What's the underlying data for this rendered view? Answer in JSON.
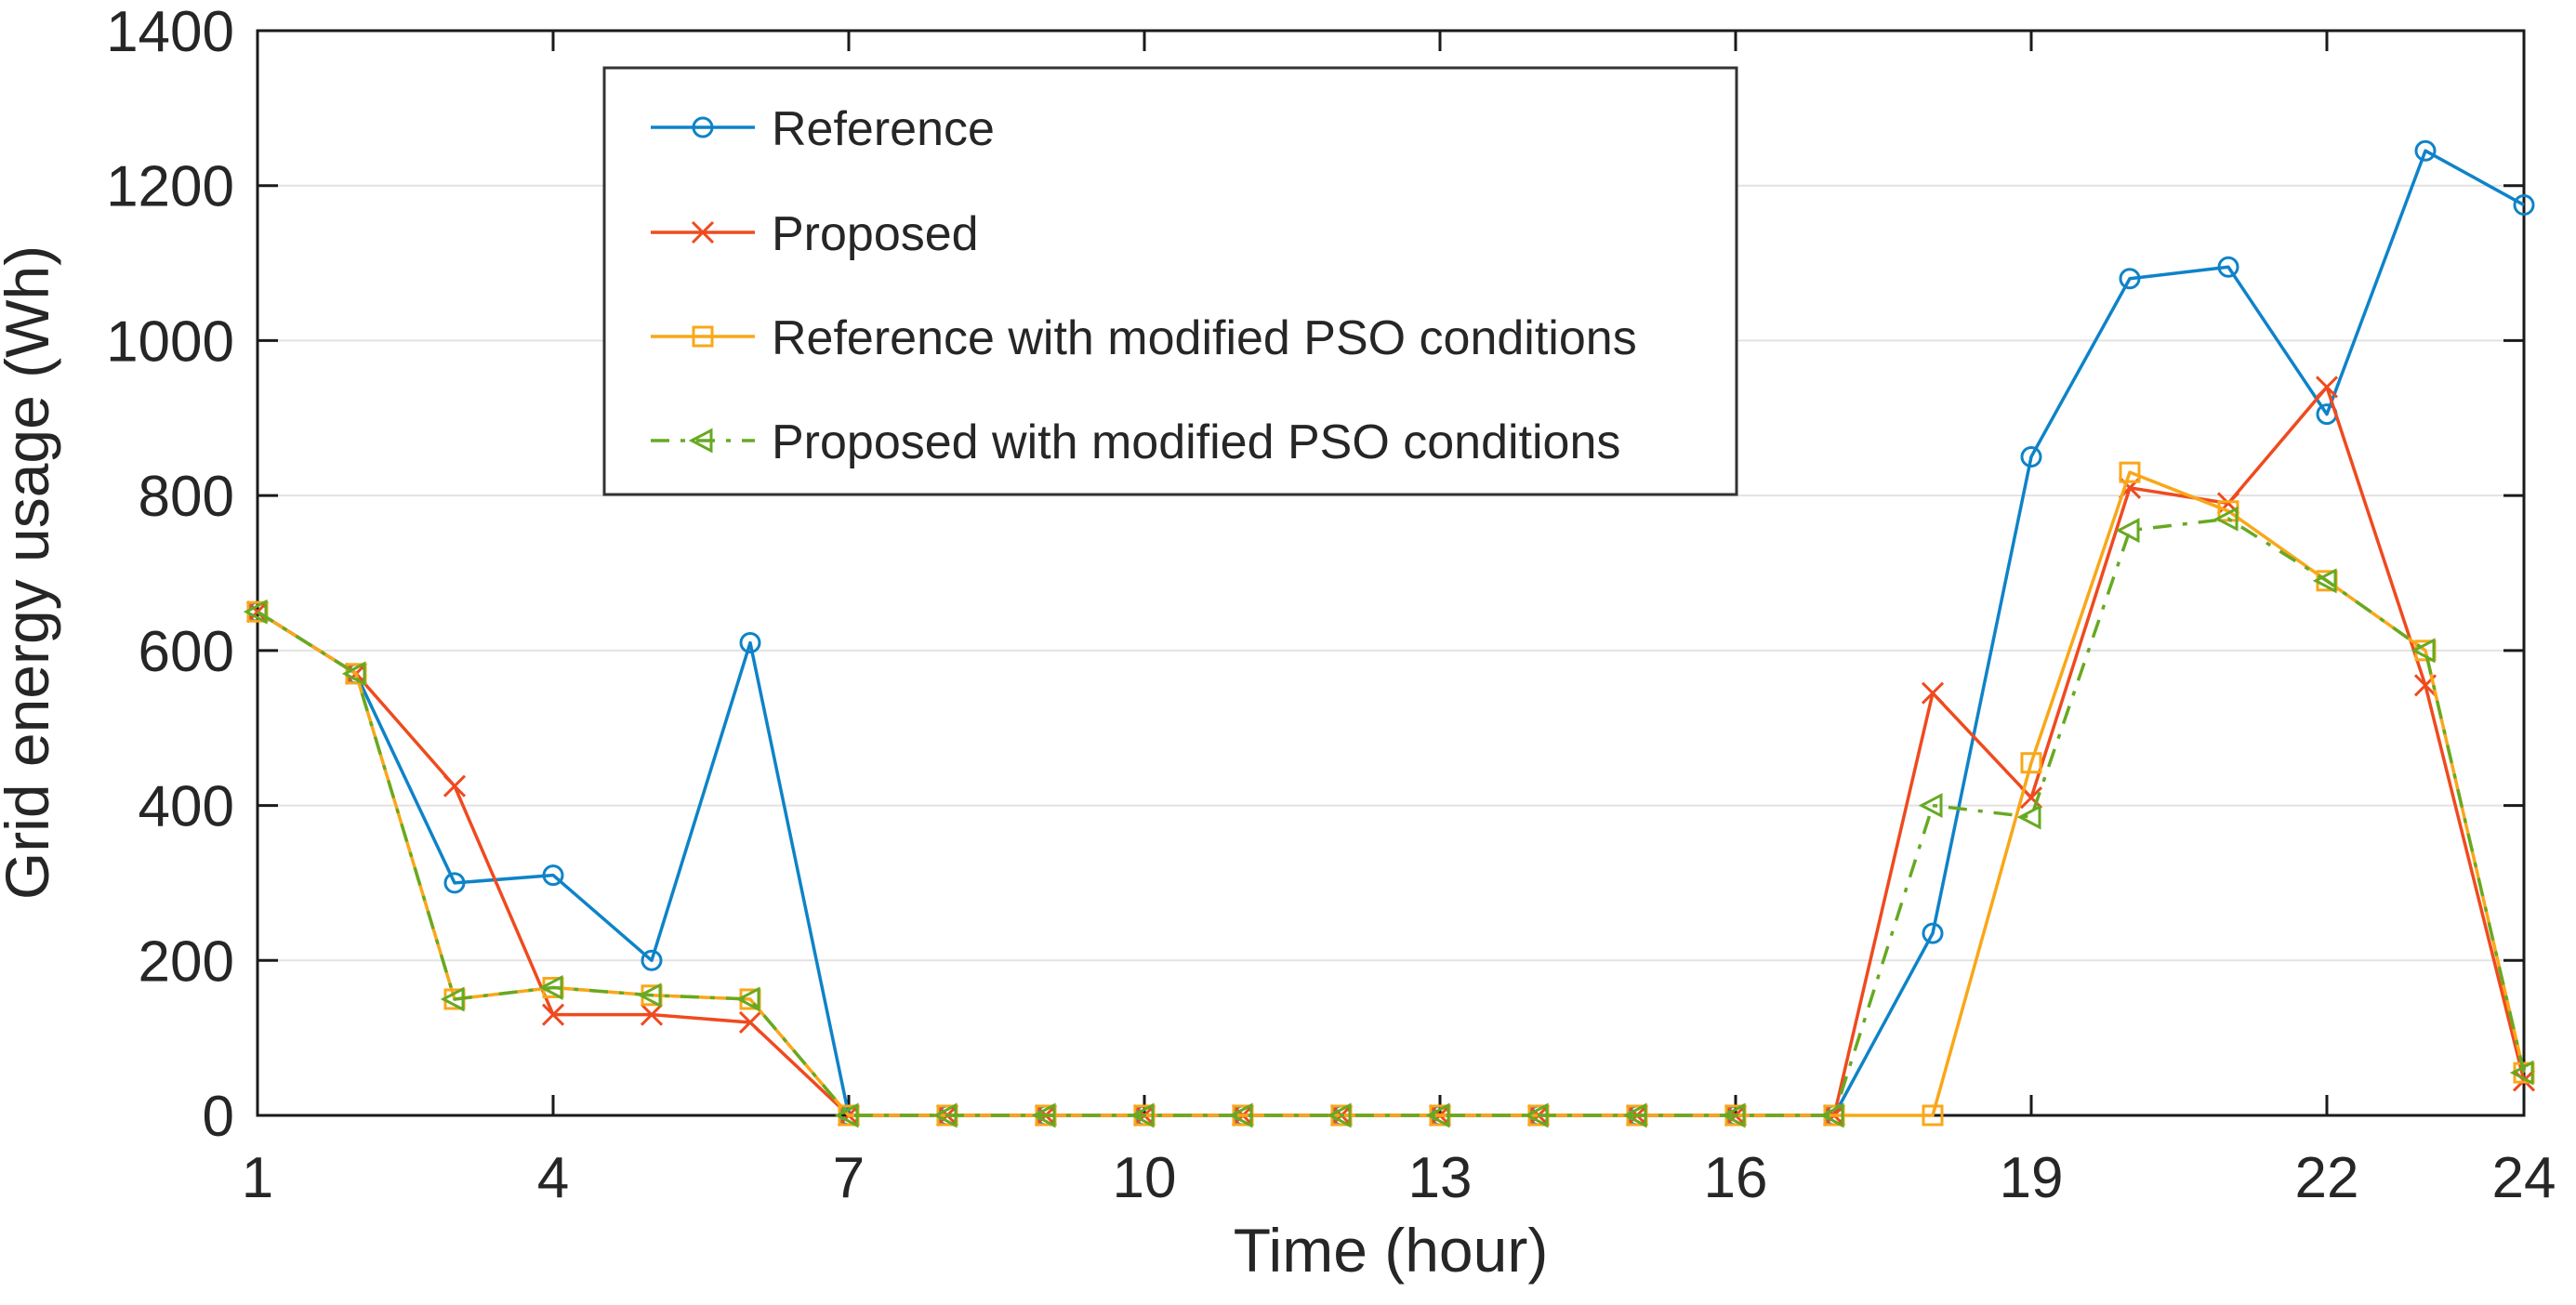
{
  "figure": {
    "background": "#ffffff",
    "axis_color": "#1a1a1a",
    "grid_color": "#e2e2e2",
    "text_color": "#262626",
    "legend_border_color": "#333333"
  },
  "chart_data": {
    "type": "line",
    "title": "",
    "xlabel": "Time (hour)",
    "ylabel": "Grid energy usage (Wh)",
    "x": [
      1,
      2,
      3,
      4,
      5,
      6,
      7,
      8,
      9,
      10,
      11,
      12,
      13,
      14,
      15,
      16,
      17,
      18,
      19,
      20,
      21,
      22,
      23,
      24
    ],
    "xlim": [
      1,
      24
    ],
    "ylim": [
      0,
      1400
    ],
    "xticks": [
      1,
      4,
      7,
      10,
      13,
      16,
      19,
      22,
      24
    ],
    "yticks": [
      0,
      200,
      400,
      600,
      800,
      1000,
      1200,
      1400
    ],
    "grid": "horizontal-only",
    "legend_position": "upper-left-inside",
    "series": [
      {
        "name": "Reference",
        "color": "#0e83c8",
        "marker": "circle",
        "line_style": "solid",
        "values": [
          650,
          570,
          300,
          310,
          200,
          610,
          0,
          0,
          0,
          0,
          0,
          0,
          0,
          0,
          0,
          0,
          0,
          235,
          850,
          1080,
          1095,
          905,
          1245,
          1175
        ]
      },
      {
        "name": "Proposed",
        "color": "#ef4a1f",
        "marker": "x",
        "line_style": "solid",
        "values": [
          650,
          570,
          425,
          130,
          130,
          120,
          0,
          0,
          0,
          0,
          0,
          0,
          0,
          0,
          0,
          0,
          0,
          545,
          410,
          810,
          790,
          940,
          555,
          45
        ]
      },
      {
        "name": "Reference with modified PSO conditions",
        "color": "#f9a719",
        "marker": "square",
        "line_style": "solid",
        "values": [
          650,
          570,
          150,
          165,
          155,
          150,
          0,
          0,
          0,
          0,
          0,
          0,
          0,
          0,
          0,
          0,
          0,
          0,
          455,
          830,
          780,
          690,
          600,
          55
        ]
      },
      {
        "name": "Proposed with modified PSO conditions",
        "color": "#67a922",
        "marker": "triangle-left",
        "line_style": "dash-dot",
        "values": [
          650,
          570,
          150,
          165,
          155,
          150,
          0,
          0,
          0,
          0,
          0,
          0,
          0,
          0,
          0,
          0,
          0,
          400,
          385,
          755,
          770,
          690,
          600,
          55
        ]
      }
    ]
  }
}
